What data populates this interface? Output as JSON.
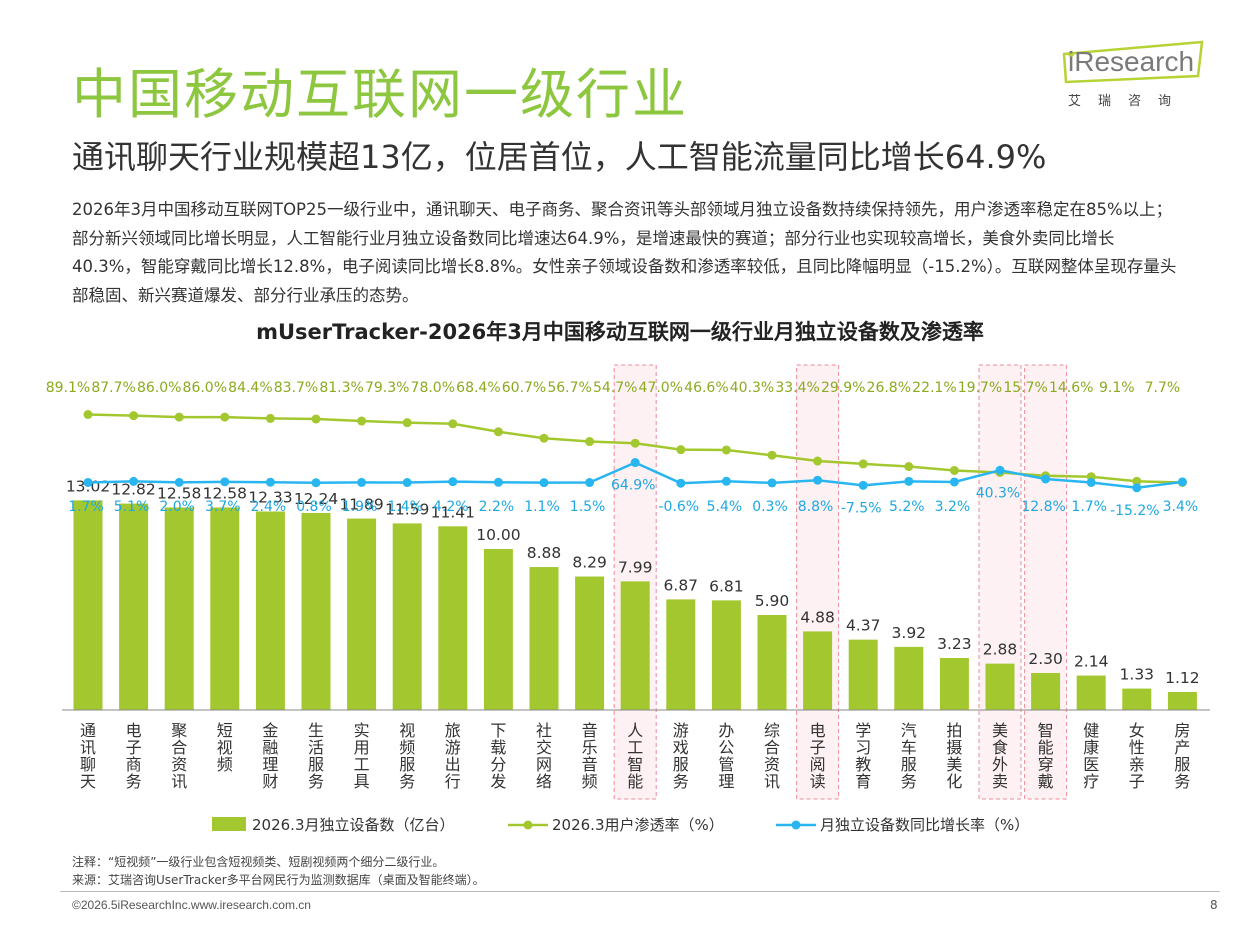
{
  "header": {
    "title": "中国移动互联网一级行业",
    "subtitle": "通讯聊天行业规模超13亿，位居首位，人工智能流量同比增长64.9%",
    "logo_text": "iResearch",
    "logo_cn": "艾瑞咨询"
  },
  "description": "2026年3月中国移动互联网TOP25一级行业中，通讯聊天、电子商务、聚合资讯等头部领域月独立设备数持续保持领先，用户渗透率稳定在85%以上；部分新兴领域同比增长明显，人工智能行业月独立设备数同比增速达64.9%，是增速最快的赛道；部分行业也实现较高增长，美食外卖同比增长40.3%，智能穿戴同比增长12.8%，电子阅读同比增长8.8%。女性亲子领域设备数和渗透率较低，且同比降幅明显（-15.2%）。互联网整体呈现存量头部稳固、新兴赛道爆发、部分行业承压的态势。",
  "colors": {
    "title_green": "#8dc63f",
    "bar": "#a3c72e",
    "penetration_line": "#a3c72e",
    "growth_line": "#29b6f0",
    "highlight_fill": "#fdf1f3",
    "highlight_border": "#f08a9a"
  },
  "chart_data": {
    "type": "bar",
    "title": "mUserTracker-2026年3月中国移动互联网一级行业月独立设备数及渗透率",
    "categories": [
      "通讯聊天",
      "电子商务",
      "聚合资讯",
      "短视频",
      "金融理财",
      "生活服务",
      "实用工具",
      "视频服务",
      "旅游出行",
      "下载分发",
      "社交网络",
      "音乐音频",
      "人工智能",
      "游戏服务",
      "办公管理",
      "综合资讯",
      "电子阅读",
      "学习教育",
      "汽车服务",
      "拍摄美化",
      "美食外卖",
      "智能穿戴",
      "健康医疗",
      "女性亲子",
      "房产服务"
    ],
    "highlighted": [
      "人工智能",
      "电子阅读",
      "美食外卖",
      "智能穿戴"
    ],
    "series": [
      {
        "name": "2026.3月独立设备数（亿台）",
        "type": "bar",
        "values": [
          13.02,
          12.82,
          12.58,
          12.58,
          12.33,
          12.24,
          11.89,
          11.59,
          11.41,
          10.0,
          8.88,
          8.29,
          7.99,
          6.87,
          6.81,
          5.9,
          4.88,
          4.37,
          3.92,
          3.23,
          2.88,
          2.3,
          2.14,
          1.33,
          1.12
        ],
        "labels": [
          "13.02",
          "12.82",
          "12.58",
          "12.58",
          "12.33",
          "12.24",
          "11.89",
          "11.59",
          "11.41",
          "10.00",
          "8.88",
          "8.29",
          "7.99",
          "6.87",
          "6.81",
          "5.90",
          "4.88",
          "4.37",
          "3.92",
          "3.23",
          "2.88",
          "2.30",
          "2.14",
          "1.33",
          "1.12"
        ]
      },
      {
        "name": "2026.3用户渗透率（%）",
        "type": "line",
        "values": [
          89.1,
          87.7,
          86.0,
          86.0,
          84.4,
          83.7,
          81.3,
          79.3,
          78.0,
          68.4,
          60.7,
          56.7,
          54.7,
          47.0,
          46.6,
          40.3,
          33.4,
          29.9,
          26.8,
          22.1,
          19.7,
          15.7,
          14.6,
          9.1,
          7.7
        ],
        "labels": [
          "89.1%",
          "87.7%",
          "86.0%",
          "86.0%",
          "84.4%",
          "83.7%",
          "81.3%",
          "79.3%",
          "78.0%",
          "68.4%",
          "60.7%",
          "56.7%",
          "54.7%",
          "47.0%",
          "46.6%",
          "40.3%",
          "33.4%",
          "29.9%",
          "26.8%",
          "22.1%",
          "19.7%",
          "15.7%",
          "14.6%",
          "9.1%",
          "7.7%"
        ]
      },
      {
        "name": "月独立设备数同比增长率（%）",
        "type": "line",
        "values": [
          1.7,
          5.1,
          2.0,
          3.7,
          2.4,
          0.8,
          1.9,
          1.4,
          4.2,
          2.2,
          1.1,
          1.5,
          64.9,
          -0.6,
          5.4,
          0.3,
          8.8,
          -7.5,
          5.2,
          3.2,
          40.3,
          12.8,
          1.7,
          -15.2,
          3.4
        ],
        "labels": [
          "1.7%",
          "5.1%",
          "2.0%",
          "3.7%",
          "2.4%",
          "0.8%",
          "1.9%",
          "1.4%",
          "4.2%",
          "2.2%",
          "1.1%",
          "1.5%",
          "64.9%",
          "-0.6%",
          "5.4%",
          "0.3%",
          "8.8%",
          "-7.5%",
          "5.2%",
          "3.2%",
          "40.3%",
          "12.8%",
          "1.7%",
          "-15.2%",
          "3.4%"
        ]
      }
    ],
    "legend": [
      "2026.3月独立设备数（亿台）",
      "2026.3用户渗透率（%）",
      "月独立设备数同比增长率（%）"
    ],
    "legend_position": "bottom"
  },
  "notes": {
    "note": "注释：“短视频”一级行业包含短视频类、短剧视频两个细分二级行业。",
    "source": "来源：艾瑞咨询UserTracker多平台网民行为监测数据库（桌面及智能终端）。"
  },
  "footer": {
    "copyright": "©2026.5iResearchInc.www.iresearch.com.cn",
    "page": "8"
  }
}
